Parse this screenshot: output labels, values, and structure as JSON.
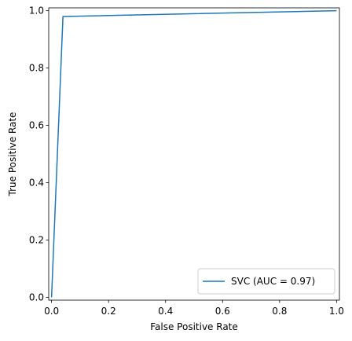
{
  "chart_data": {
    "type": "line",
    "title": "",
    "xlabel": "False Positive Rate",
    "ylabel": "True Positive Rate",
    "xlim": [
      -0.01,
      1.01
    ],
    "ylim": [
      -0.01,
      1.01
    ],
    "x_ticks": [
      0.0,
      0.2,
      0.4,
      0.6,
      0.8,
      1.0
    ],
    "x_tick_labels": [
      "0.0",
      "0.2",
      "0.4",
      "0.6",
      "0.8",
      "1.0"
    ],
    "y_ticks": [
      0.0,
      0.2,
      0.4,
      0.6,
      0.8,
      1.0
    ],
    "y_tick_labels": [
      "0.0",
      "0.2",
      "0.4",
      "0.6",
      "0.8",
      "1.0"
    ],
    "grid": false,
    "legend_position": "lower right",
    "series": [
      {
        "name": "SVC (AUC = 0.97)",
        "color": "#1f77b4",
        "x": [
          0.0,
          0.04,
          1.0
        ],
        "y": [
          0.0,
          0.98,
          1.0
        ]
      }
    ]
  }
}
